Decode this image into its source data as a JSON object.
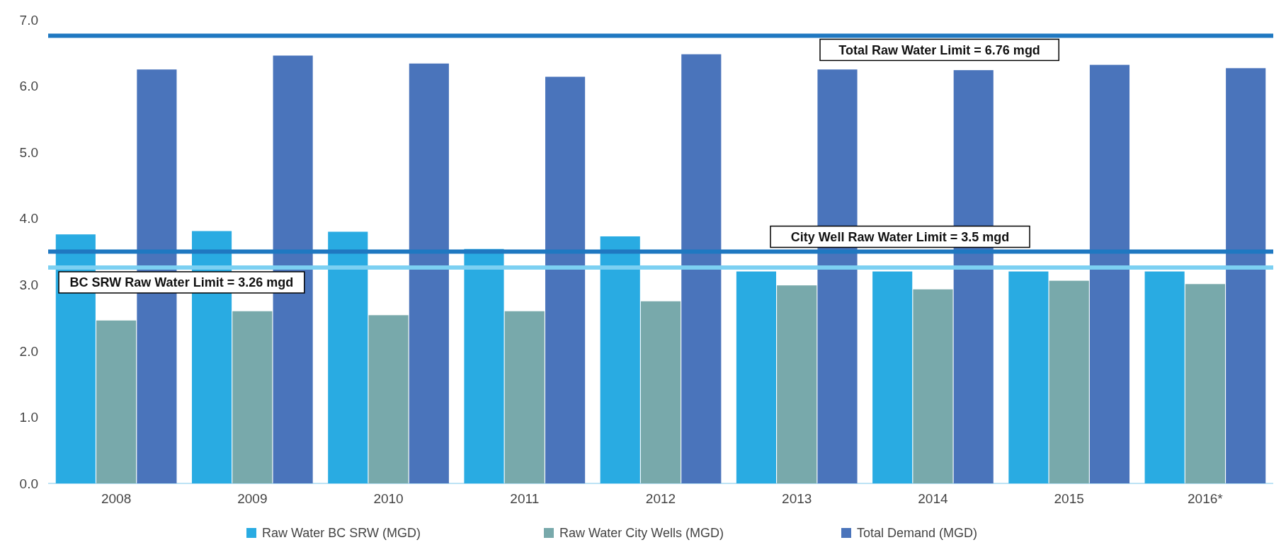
{
  "chart_data": {
    "type": "bar",
    "categories": [
      "2008",
      "2009",
      "2010",
      "2011",
      "2012",
      "2013",
      "2014",
      "2015",
      "2016*"
    ],
    "series": [
      {
        "name": "Raw Water BC SRW (MGD)",
        "color": "#29abe2",
        "values": [
          3.76,
          3.81,
          3.8,
          3.54,
          3.73,
          3.2,
          3.2,
          3.2,
          3.2
        ]
      },
      {
        "name": "Raw Water City Wells (MGD)",
        "color": "#78a9ab",
        "values": [
          2.46,
          2.6,
          2.54,
          2.6,
          2.75,
          2.99,
          2.93,
          3.06,
          3.01
        ]
      },
      {
        "name": "Total Demand (MGD)",
        "color": "#4a74bb",
        "values": [
          6.25,
          6.46,
          6.34,
          6.14,
          6.48,
          6.25,
          6.24,
          6.32,
          6.27
        ]
      }
    ],
    "ylim": [
      0,
      7
    ],
    "yticks": [
      {
        "value": 0,
        "label": "0.0"
      },
      {
        "value": 1,
        "label": "1.0"
      },
      {
        "value": 2,
        "label": "2.0"
      },
      {
        "value": 3,
        "label": "3.0"
      },
      {
        "value": 4,
        "label": "4.0"
      },
      {
        "value": 5,
        "label": "5.0"
      },
      {
        "value": 6,
        "label": "6.0"
      },
      {
        "value": 7,
        "label": "7.0"
      }
    ],
    "grid": false,
    "legend": "bottom",
    "ref_lines": [
      {
        "axis": "y",
        "value": 6.76,
        "label": "Total Raw Water Limit = 6.76 mgd",
        "color": "#1f78c1"
      },
      {
        "axis": "y",
        "value": 3.5,
        "label": "City Well Raw Water Limit = 3.5 mgd",
        "color": "#1f78c1"
      },
      {
        "axis": "y",
        "value": 3.26,
        "label": "BC SRW Raw Water Limit = 3.26 mgd",
        "color": "#7cd0f2"
      }
    ]
  }
}
